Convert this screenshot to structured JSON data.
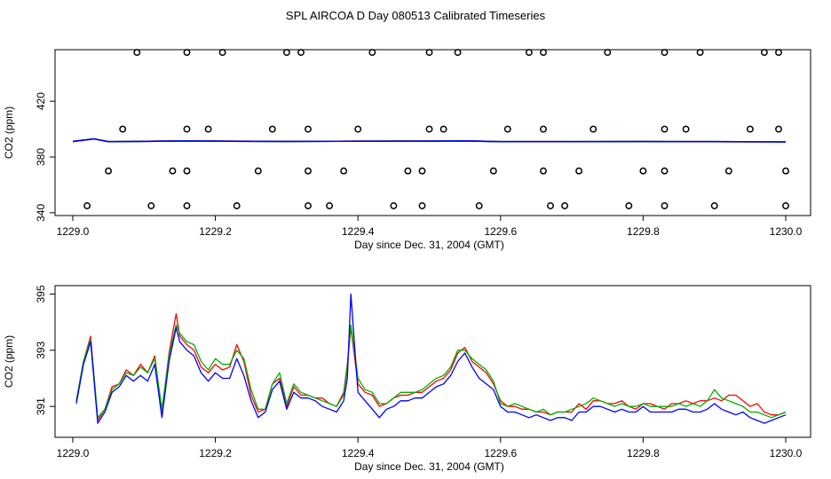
{
  "title": "SPL AIRCOA D  Day 080513  Calibrated Timeseries",
  "chart_data": [
    {
      "type": "scatter",
      "xlabel": "Day since Dec. 31, 2004 (GMT)",
      "ylabel": "CO2 (ppm)",
      "xlim": [
        1229.0,
        1230.0
      ],
      "ylim": [
        338,
        457
      ],
      "xticks": [
        "1229.0",
        "1229.2",
        "1229.4",
        "1229.6",
        "1229.8",
        "1230.0"
      ],
      "yticks": [
        "340",
        "380",
        "420"
      ],
      "grid": false,
      "calibration_points": {
        "x": [
          1229.09,
          1229.16,
          1229.21,
          1229.3,
          1229.32,
          1229.42,
          1229.5,
          1229.54,
          1229.64,
          1229.66,
          1229.75,
          1229.83,
          1229.88,
          1229.97,
          1229.99,
          1229.07,
          1229.16,
          1229.19,
          1229.28,
          1229.33,
          1229.4,
          1229.5,
          1229.52,
          1229.61,
          1229.66,
          1229.73,
          1229.83,
          1229.86,
          1229.95,
          1229.99,
          1229.05,
          1229.14,
          1229.16,
          1229.26,
          1229.33,
          1229.38,
          1229.47,
          1229.49,
          1229.59,
          1229.66,
          1229.71,
          1229.8,
          1229.83,
          1229.92,
          1230.0,
          1229.02,
          1229.11,
          1229.16,
          1229.23,
          1229.33,
          1229.36,
          1229.45,
          1229.49,
          1229.57,
          1229.67,
          1229.69,
          1229.78,
          1229.83,
          1229.9,
          1230.0
        ],
        "y": [
          455,
          455,
          455,
          455,
          455,
          455,
          455,
          455,
          455,
          455,
          455,
          455,
          455,
          455,
          455,
          400,
          400,
          400,
          400,
          400,
          400,
          400,
          400,
          400,
          400,
          400,
          400,
          400,
          400,
          400,
          370,
          370,
          370,
          370,
          370,
          370,
          370,
          370,
          370,
          370,
          370,
          370,
          370,
          370,
          370,
          345,
          345,
          345,
          345,
          345,
          345,
          345,
          345,
          345,
          345,
          345,
          345,
          345,
          345,
          345
        ]
      },
      "series": [
        {
          "color": "#ff0000",
          "x": [
            1229.0,
            1229.03,
            1229.05,
            1229.15,
            1229.2,
            1229.3,
            1229.4,
            1229.5,
            1229.55,
            1229.6,
            1229.7,
            1229.8,
            1229.9,
            1230.0
          ],
          "y": [
            391.2,
            393.0,
            391.0,
            391.5,
            391.4,
            391.2,
            391.3,
            391.4,
            391.6,
            391.0,
            391.0,
            391.1,
            391.0,
            390.8
          ]
        },
        {
          "color": "#00b000",
          "x": [
            1229.0,
            1229.03,
            1229.05,
            1229.15,
            1229.2,
            1229.3,
            1229.4,
            1229.5,
            1229.55,
            1229.6,
            1229.7,
            1229.8,
            1229.9,
            1230.0
          ],
          "y": [
            391.2,
            393.0,
            391.0,
            391.5,
            391.4,
            391.2,
            391.3,
            391.4,
            391.6,
            391.0,
            391.0,
            391.1,
            391.0,
            390.8
          ]
        },
        {
          "color": "#0000ff",
          "x": [
            1229.0,
            1229.03,
            1229.05,
            1229.15,
            1229.2,
            1229.3,
            1229.4,
            1229.5,
            1229.55,
            1229.6,
            1229.7,
            1229.8,
            1229.9,
            1230.0
          ],
          "y": [
            391.2,
            393.0,
            391.0,
            391.5,
            391.4,
            391.2,
            391.3,
            391.4,
            391.6,
            391.0,
            391.0,
            391.1,
            391.0,
            390.8
          ]
        }
      ]
    },
    {
      "type": "line",
      "xlabel": "Day since Dec. 31, 2004 (GMT)",
      "ylabel": "CO2 (ppm)",
      "xlim": [
        1229.0,
        1230.0
      ],
      "ylim": [
        389.9,
        395.3
      ],
      "xticks": [
        "1229.0",
        "1229.2",
        "1229.4",
        "1229.6",
        "1229.8",
        "1230.0"
      ],
      "yticks": [
        "391",
        "393",
        "395"
      ],
      "grid": false,
      "series": [
        {
          "color": "#ff0000",
          "x": [
            1229.005,
            1229.015,
            1229.025,
            1229.035,
            1229.045,
            1229.055,
            1229.065,
            1229.075,
            1229.085,
            1229.095,
            1229.105,
            1229.115,
            1229.125,
            1229.135,
            1229.145,
            1229.15,
            1229.16,
            1229.17,
            1229.18,
            1229.19,
            1229.2,
            1229.21,
            1229.22,
            1229.23,
            1229.24,
            1229.25,
            1229.26,
            1229.27,
            1229.28,
            1229.29,
            1229.3,
            1229.31,
            1229.32,
            1229.33,
            1229.34,
            1229.35,
            1229.36,
            1229.37,
            1229.38,
            1229.385,
            1229.39,
            1229.4,
            1229.41,
            1229.42,
            1229.43,
            1229.44,
            1229.45,
            1229.46,
            1229.47,
            1229.48,
            1229.49,
            1229.5,
            1229.51,
            1229.52,
            1229.53,
            1229.54,
            1229.55,
            1229.56,
            1229.57,
            1229.58,
            1229.59,
            1229.6,
            1229.61,
            1229.62,
            1229.63,
            1229.64,
            1229.65,
            1229.66,
            1229.67,
            1229.68,
            1229.69,
            1229.7,
            1229.71,
            1229.72,
            1229.73,
            1229.74,
            1229.75,
            1229.76,
            1229.77,
            1229.78,
            1229.79,
            1229.8,
            1229.81,
            1229.82,
            1229.83,
            1229.84,
            1229.85,
            1229.86,
            1229.87,
            1229.88,
            1229.89,
            1229.9,
            1229.91,
            1229.92,
            1229.93,
            1229.94,
            1229.95,
            1229.96,
            1229.97,
            1229.98,
            1229.99,
            1230.0
          ],
          "y": [
            391.2,
            392.6,
            393.5,
            390.5,
            390.9,
            391.7,
            391.8,
            392.3,
            392.1,
            392.5,
            392.2,
            392.8,
            390.8,
            392.9,
            394.3,
            393.5,
            393.2,
            393.0,
            392.4,
            392.2,
            392.5,
            392.3,
            392.4,
            393.2,
            392.6,
            391.4,
            390.8,
            390.9,
            391.8,
            392.0,
            391.0,
            391.7,
            391.4,
            391.4,
            391.3,
            391.3,
            391.1,
            391.0,
            391.5,
            392.5,
            393.8,
            391.8,
            391.5,
            391.4,
            391.0,
            391.1,
            391.3,
            391.4,
            391.4,
            391.5,
            391.5,
            391.7,
            391.9,
            392.0,
            392.3,
            392.9,
            393.1,
            392.6,
            392.4,
            392.2,
            391.8,
            391.2,
            391.0,
            391.0,
            390.9,
            390.9,
            390.8,
            390.8,
            390.7,
            390.8,
            390.8,
            390.8,
            391.1,
            390.9,
            391.2,
            391.2,
            391.1,
            391.1,
            391.2,
            391.0,
            390.9,
            391.1,
            391.1,
            391.0,
            390.9,
            391.1,
            391.1,
            391.2,
            391.1,
            391.2,
            391.2,
            391.3,
            391.2,
            391.4,
            391.4,
            391.2,
            391.0,
            391.1,
            390.8,
            390.7,
            390.7,
            390.8
          ]
        },
        {
          "color": "#00b000",
          "x": [
            1229.005,
            1229.015,
            1229.025,
            1229.035,
            1229.045,
            1229.055,
            1229.065,
            1229.075,
            1229.085,
            1229.095,
            1229.105,
            1229.115,
            1229.125,
            1229.135,
            1229.145,
            1229.15,
            1229.16,
            1229.17,
            1229.18,
            1229.19,
            1229.2,
            1229.21,
            1229.22,
            1229.23,
            1229.24,
            1229.25,
            1229.26,
            1229.27,
            1229.28,
            1229.29,
            1229.3,
            1229.31,
            1229.32,
            1229.33,
            1229.34,
            1229.35,
            1229.36,
            1229.37,
            1229.38,
            1229.385,
            1229.39,
            1229.4,
            1229.41,
            1229.42,
            1229.43,
            1229.44,
            1229.45,
            1229.46,
            1229.47,
            1229.48,
            1229.49,
            1229.5,
            1229.51,
            1229.52,
            1229.53,
            1229.54,
            1229.55,
            1229.56,
            1229.57,
            1229.58,
            1229.59,
            1229.6,
            1229.61,
            1229.62,
            1229.63,
            1229.64,
            1229.65,
            1229.66,
            1229.67,
            1229.68,
            1229.69,
            1229.7,
            1229.71,
            1229.72,
            1229.73,
            1229.74,
            1229.75,
            1229.76,
            1229.77,
            1229.78,
            1229.79,
            1229.8,
            1229.81,
            1229.82,
            1229.83,
            1229.84,
            1229.85,
            1229.86,
            1229.87,
            1229.88,
            1229.89,
            1229.9,
            1229.91,
            1229.92,
            1229.93,
            1229.94,
            1229.95,
            1229.96,
            1229.97,
            1229.98,
            1229.99,
            1230.0
          ],
          "y": [
            391.2,
            392.6,
            393.4,
            390.6,
            390.9,
            391.6,
            391.8,
            392.2,
            392.1,
            392.4,
            392.2,
            392.7,
            390.9,
            392.8,
            393.9,
            393.6,
            393.3,
            393.2,
            392.6,
            392.3,
            392.7,
            392.5,
            392.5,
            393.0,
            392.7,
            391.6,
            390.9,
            390.9,
            391.8,
            392.2,
            391.1,
            391.8,
            391.5,
            391.4,
            391.3,
            391.2,
            391.1,
            391.0,
            391.4,
            392.4,
            393.9,
            392.0,
            391.6,
            391.5,
            391.1,
            391.1,
            391.3,
            391.5,
            391.5,
            391.5,
            391.6,
            391.8,
            392.0,
            392.1,
            392.4,
            393.0,
            393.0,
            392.7,
            392.5,
            392.3,
            391.9,
            391.1,
            391.0,
            391.1,
            391.0,
            390.9,
            390.8,
            390.9,
            390.7,
            390.8,
            390.8,
            390.9,
            391.0,
            391.1,
            391.3,
            391.2,
            391.1,
            391.0,
            391.1,
            391.0,
            391.0,
            391.1,
            391.0,
            391.0,
            391.0,
            391.0,
            391.1,
            391.0,
            391.1,
            391.0,
            391.2,
            391.6,
            391.3,
            391.2,
            391.1,
            391.0,
            390.8,
            390.8,
            390.7,
            390.6,
            390.7,
            390.8
          ]
        },
        {
          "color": "#0000ff",
          "x": [
            1229.005,
            1229.015,
            1229.025,
            1229.035,
            1229.045,
            1229.055,
            1229.065,
            1229.075,
            1229.085,
            1229.095,
            1229.105,
            1229.115,
            1229.125,
            1229.135,
            1229.145,
            1229.15,
            1229.16,
            1229.17,
            1229.18,
            1229.19,
            1229.2,
            1229.21,
            1229.22,
            1229.23,
            1229.24,
            1229.25,
            1229.26,
            1229.27,
            1229.28,
            1229.29,
            1229.3,
            1229.31,
            1229.32,
            1229.33,
            1229.34,
            1229.35,
            1229.36,
            1229.37,
            1229.38,
            1229.385,
            1229.39,
            1229.4,
            1229.41,
            1229.42,
            1229.43,
            1229.44,
            1229.45,
            1229.46,
            1229.47,
            1229.48,
            1229.49,
            1229.5,
            1229.51,
            1229.52,
            1229.53,
            1229.54,
            1229.55,
            1229.56,
            1229.57,
            1229.58,
            1229.59,
            1229.6,
            1229.61,
            1229.62,
            1229.63,
            1229.64,
            1229.65,
            1229.66,
            1229.67,
            1229.68,
            1229.69,
            1229.7,
            1229.71,
            1229.72,
            1229.73,
            1229.74,
            1229.75,
            1229.76,
            1229.77,
            1229.78,
            1229.79,
            1229.8,
            1229.81,
            1229.82,
            1229.83,
            1229.84,
            1229.85,
            1229.86,
            1229.87,
            1229.88,
            1229.89,
            1229.9,
            1229.91,
            1229.92,
            1229.93,
            1229.94,
            1229.95,
            1229.96,
            1229.97,
            1229.98,
            1229.99,
            1230.0
          ],
          "y": [
            391.1,
            392.5,
            393.3,
            390.4,
            390.8,
            391.5,
            391.7,
            392.1,
            391.9,
            392.1,
            391.9,
            392.5,
            390.6,
            392.6,
            393.8,
            393.3,
            393.0,
            392.8,
            392.2,
            391.9,
            392.2,
            392.0,
            392.0,
            392.7,
            392.1,
            391.2,
            390.6,
            390.8,
            391.6,
            391.9,
            390.9,
            391.5,
            391.3,
            391.3,
            391.2,
            391.0,
            390.9,
            390.8,
            391.2,
            392.0,
            395.0,
            391.5,
            391.2,
            390.9,
            390.6,
            390.9,
            391.0,
            391.2,
            391.2,
            391.3,
            391.3,
            391.5,
            391.7,
            391.8,
            392.1,
            392.6,
            392.9,
            392.4,
            392.0,
            391.8,
            391.6,
            391.0,
            390.8,
            390.8,
            390.7,
            390.6,
            390.7,
            390.6,
            390.5,
            390.6,
            390.6,
            390.5,
            390.8,
            390.8,
            391.0,
            391.0,
            390.9,
            390.8,
            390.9,
            390.8,
            390.8,
            391.0,
            390.8,
            390.8,
            390.8,
            390.8,
            390.9,
            390.9,
            390.8,
            390.8,
            390.9,
            391.1,
            390.9,
            390.8,
            390.7,
            390.8,
            390.6,
            390.5,
            390.4,
            390.5,
            390.6,
            390.7
          ]
        }
      ]
    }
  ]
}
